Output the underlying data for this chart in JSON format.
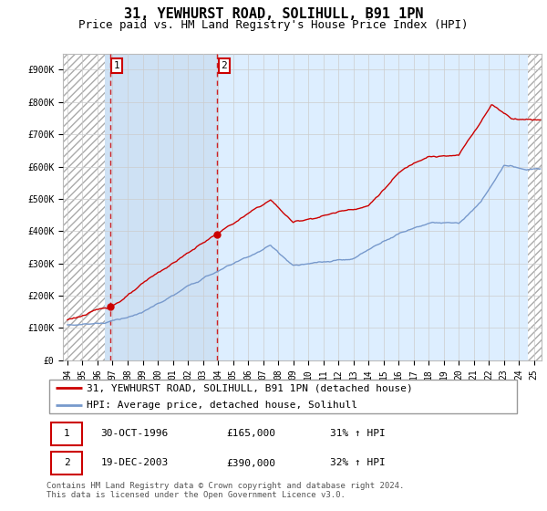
{
  "title": "31, YEWHURST ROAD, SOLIHULL, B91 1PN",
  "subtitle": "Price paid vs. HM Land Registry's House Price Index (HPI)",
  "ylim": [
    0,
    950000
  ],
  "yticks": [
    0,
    100000,
    200000,
    300000,
    400000,
    500000,
    600000,
    700000,
    800000,
    900000
  ],
  "ytick_labels": [
    "£0",
    "£100K",
    "£200K",
    "£300K",
    "£400K",
    "£500K",
    "£600K",
    "£700K",
    "£800K",
    "£900K"
  ],
  "xlim_start": 1993.7,
  "xlim_end": 2025.5,
  "xticks": [
    1994,
    1995,
    1996,
    1997,
    1998,
    1999,
    2000,
    2001,
    2002,
    2003,
    2004,
    2005,
    2006,
    2007,
    2008,
    2009,
    2010,
    2011,
    2012,
    2013,
    2014,
    2015,
    2016,
    2017,
    2018,
    2019,
    2020,
    2021,
    2022,
    2023,
    2024,
    2025
  ],
  "background_color": "#ffffff",
  "plot_bg_color": "#ddeeff",
  "hatch_pattern": "////",
  "grid_color": "#cccccc",
  "line1_color": "#cc0000",
  "line2_color": "#7799cc",
  "hatch_left_end": 1996.5,
  "hatch_right_start": 2024.58,
  "blue_shade_start": 1996.5,
  "blue_shade_end": 2004.0,
  "sale1_date": 1996.83,
  "sale1_price": 165000,
  "sale1_label": "1",
  "sale2_date": 2003.96,
  "sale2_price": 390000,
  "sale2_label": "2",
  "legend_line1": "31, YEWHURST ROAD, SOLIHULL, B91 1PN (detached house)",
  "legend_line2": "HPI: Average price, detached house, Solihull",
  "table_row1_num": "1",
  "table_row1_date": "30-OCT-1996",
  "table_row1_price": "£165,000",
  "table_row1_hpi": "31% ↑ HPI",
  "table_row2_num": "2",
  "table_row2_date": "19-DEC-2003",
  "table_row2_price": "£390,000",
  "table_row2_hpi": "32% ↑ HPI",
  "footer": "Contains HM Land Registry data © Crown copyright and database right 2024.\nThis data is licensed under the Open Government Licence v3.0.",
  "title_fontsize": 11,
  "subtitle_fontsize": 9,
  "tick_fontsize": 7,
  "legend_fontsize": 8,
  "table_fontsize": 8
}
